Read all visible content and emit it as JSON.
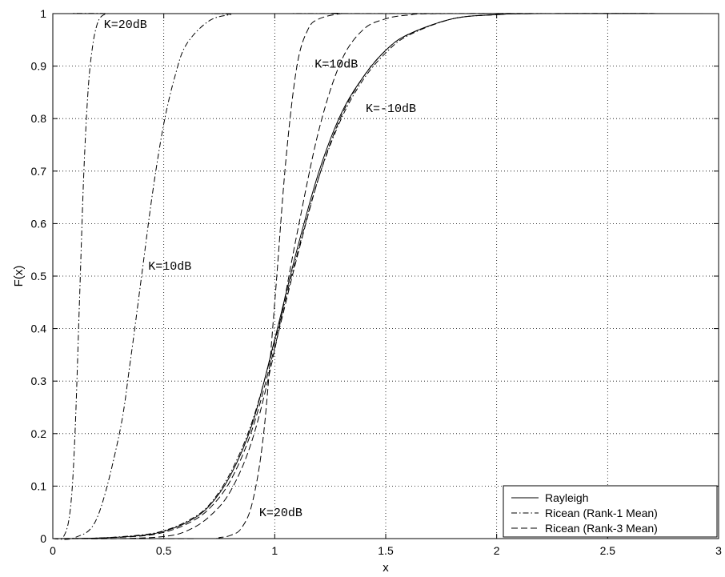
{
  "chart_data": {
    "type": "line",
    "title": "",
    "xlabel": "x",
    "ylabel": "F(x)",
    "xlim": [
      0,
      3
    ],
    "ylim": [
      0,
      1
    ],
    "xticks": [
      0,
      0.5,
      1,
      1.5,
      2,
      2.5,
      3
    ],
    "xtick_labels": [
      "0",
      "0.5",
      "1",
      "1.5",
      "2",
      "2.5",
      "3"
    ],
    "yticks": [
      0,
      0.1,
      0.2,
      0.3,
      0.4,
      0.5,
      0.6,
      0.7,
      0.8,
      0.9,
      1
    ],
    "ytick_labels": [
      "0",
      "0.1",
      "0.2",
      "0.3",
      "0.4",
      "0.5",
      "0.6",
      "0.7",
      "0.8",
      "0.9",
      "1"
    ],
    "grid": true,
    "legend_position": "bottom-right",
    "series": [
      {
        "name": "Rayleigh",
        "style": "solid",
        "x": [
          0,
          0.2,
          0.4,
          0.5,
          0.6,
          0.7,
          0.8,
          0.9,
          1.0,
          1.1,
          1.2,
          1.3,
          1.4,
          1.5,
          1.6,
          1.8,
          2.0,
          2.2,
          3.0
        ],
        "y": [
          0,
          0.001,
          0.006,
          0.014,
          0.03,
          0.06,
          0.12,
          0.22,
          0.38,
          0.55,
          0.7,
          0.81,
          0.88,
          0.93,
          0.96,
          0.99,
          0.998,
          1,
          1
        ]
      },
      {
        "name": "Ricean (Rank-1 Mean)",
        "style": "dashdot",
        "curves": [
          {
            "label": "K=-10dB",
            "x": [
              0,
              0.2,
              0.4,
              0.5,
              0.6,
              0.7,
              0.8,
              0.9,
              1.0,
              1.1,
              1.2,
              1.3,
              1.4,
              1.5,
              1.6,
              1.8,
              2.0,
              2.2,
              3.0
            ],
            "y": [
              0,
              0.001,
              0.007,
              0.015,
              0.032,
              0.062,
              0.125,
              0.225,
              0.375,
              0.54,
              0.69,
              0.8,
              0.875,
              0.925,
              0.958,
              0.99,
              0.998,
              1,
              1
            ]
          },
          {
            "label": "K=10dB",
            "x": [
              0,
              0.1,
              0.2,
              0.3,
              0.35,
              0.4,
              0.45,
              0.5,
              0.55,
              0.6,
              0.7,
              0.8,
              0.9,
              3.0
            ],
            "y": [
              0,
              0.002,
              0.04,
              0.2,
              0.34,
              0.5,
              0.66,
              0.79,
              0.88,
              0.94,
              0.985,
              0.998,
              1,
              1
            ]
          },
          {
            "label": "K=20dB",
            "x": [
              0,
              0.05,
              0.08,
              0.1,
              0.12,
              0.14,
              0.16,
              0.18,
              0.2,
              0.22,
              0.25,
              0.3,
              3.0
            ],
            "y": [
              0,
              0.005,
              0.06,
              0.2,
              0.45,
              0.7,
              0.86,
              0.94,
              0.98,
              0.995,
              1,
              1,
              1
            ]
          }
        ]
      },
      {
        "name": "Ricean (Rank-3 Mean)",
        "style": "dashed",
        "curves": [
          {
            "label": "K=-10dB",
            "x": [
              0,
              0.2,
              0.4,
              0.5,
              0.6,
              0.7,
              0.8,
              0.9,
              1.0,
              1.1,
              1.2,
              1.3,
              1.4,
              1.5,
              1.6,
              1.8,
              2.0,
              2.2,
              3.0
            ],
            "y": [
              0,
              0.001,
              0.005,
              0.012,
              0.027,
              0.055,
              0.11,
              0.21,
              0.365,
              0.535,
              0.69,
              0.805,
              0.88,
              0.93,
              0.96,
              0.99,
              0.998,
              1,
              1
            ]
          },
          {
            "label": "K=10dB",
            "x": [
              0,
              0.3,
              0.5,
              0.6,
              0.7,
              0.8,
              0.9,
              1.0,
              1.1,
              1.2,
              1.3,
              1.4,
              1.5,
              1.6,
              1.8,
              3.0
            ],
            "y": [
              0,
              0.0,
              0.004,
              0.014,
              0.04,
              0.09,
              0.19,
              0.36,
              0.58,
              0.78,
              0.91,
              0.97,
              0.99,
              0.997,
              1,
              1
            ]
          },
          {
            "label": "K=20dB",
            "x": [
              0,
              0.7,
              0.75,
              0.8,
              0.85,
              0.9,
              0.95,
              1.0,
              1.05,
              1.1,
              1.15,
              1.2,
              1.3,
              1.4,
              3.0
            ],
            "y": [
              0,
              0.0,
              0.002,
              0.006,
              0.02,
              0.07,
              0.2,
              0.45,
              0.72,
              0.9,
              0.97,
              0.99,
              1,
              1,
              1
            ]
          }
        ]
      }
    ],
    "annotations": [
      {
        "text": "K=20dB",
        "x": 0.23,
        "y": 0.98
      },
      {
        "text": "K=10dB",
        "x": 1.18,
        "y": 0.905
      },
      {
        "text": "K=-10dB",
        "x": 1.41,
        "y": 0.82
      },
      {
        "text": "K=10dB",
        "x": 0.43,
        "y": 0.52
      },
      {
        "text": "K=20dB",
        "x": 0.93,
        "y": 0.05
      }
    ],
    "colors": {
      "lines": "#000000",
      "grid": "#000000",
      "background": "#ffffff"
    }
  }
}
